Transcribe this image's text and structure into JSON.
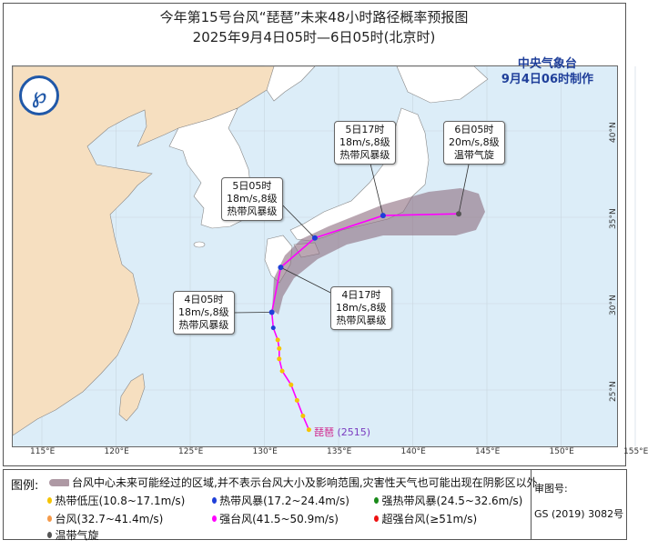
{
  "title": {
    "line1": "今年第15号台风“琵琶”未来48小时路径概率预报图",
    "line2": "2025年9月4日05时—6日05时(北京时)"
  },
  "agency": {
    "name": "中央气象台",
    "issued": "9月4日06时制作"
  },
  "map": {
    "lon_ticks": [
      "115°E",
      "120°E",
      "125°E",
      "130°E",
      "135°E",
      "140°E",
      "145°E",
      "150°E",
      "155°E"
    ],
    "lat_ticks": [
      "40°N",
      "35°N",
      "30°N",
      "25°N"
    ],
    "colors": {
      "sea": "#dcedf8",
      "china": "#f6dfc0",
      "other_land": "#ffffff",
      "cone": "#8c6d7e",
      "track": "#ff00ff"
    }
  },
  "typhoon": {
    "name": "琵琶",
    "code": "(2515)"
  },
  "past_track": [
    {
      "lon": 133.0,
      "lat": 22.7,
      "class": "tropical-depression"
    },
    {
      "lon": 132.6,
      "lat": 23.5,
      "class": "tropical-depression"
    },
    {
      "lon": 132.2,
      "lat": 24.4,
      "class": "tropical-depression"
    },
    {
      "lon": 131.8,
      "lat": 25.3,
      "class": "tropical-depression"
    },
    {
      "lon": 131.2,
      "lat": 26.1,
      "class": "tropical-depression"
    },
    {
      "lon": 131.0,
      "lat": 26.8,
      "class": "tropical-depression"
    },
    {
      "lon": 131.0,
      "lat": 27.4,
      "class": "tropical-depression"
    },
    {
      "lon": 130.9,
      "lat": 27.9,
      "class": "tropical-depression"
    },
    {
      "lon": 130.6,
      "lat": 28.6,
      "class": "tropical-storm"
    }
  ],
  "forecast_points": [
    {
      "lon": 130.5,
      "lat": 29.5,
      "time": "4日05时",
      "wind": "18m/s,8级",
      "level": "热带风暴级",
      "class": "tropical-storm"
    },
    {
      "lon": 131.1,
      "lat": 32.1,
      "time": "4日17时",
      "wind": "18m/s,8级",
      "level": "热带风暴级",
      "class": "tropical-storm"
    },
    {
      "lon": 133.4,
      "lat": 33.8,
      "time": "5日05时",
      "wind": "18m/s,8级",
      "level": "热带风暴级",
      "class": "tropical-storm"
    },
    {
      "lon": 138.0,
      "lat": 35.1,
      "time": "5日17时",
      "wind": "18m/s,8级",
      "level": "热带风暴级",
      "class": "tropical-storm"
    },
    {
      "lon": 143.1,
      "lat": 35.2,
      "time": "6日05时",
      "wind": "20m/s,8级",
      "level": "温带气旋",
      "class": "extratropical"
    }
  ],
  "legend": {
    "title": "图例:",
    "cone": "台风中心未来可能经过的区域,并不表示台风大小及影响范围,灾害性天气也可能出现在阴影区以外",
    "items": [
      {
        "label": "热带低压(10.8~17.1m/s)",
        "color": "#f5c400"
      },
      {
        "label": "热带风暴(17.2~24.4m/s)",
        "color": "#1f3fd8"
      },
      {
        "label": "强热带风暴(24.5~32.6m/s)",
        "color": "#1a8a1a"
      },
      {
        "label": "台风(32.7~41.4m/s)",
        "color": "#f59a4a"
      },
      {
        "label": "强台风(41.5~50.9m/s)",
        "color": "#ff00ff"
      },
      {
        "label": "超强台风(≥51m/s)",
        "color": "#ee1111"
      },
      {
        "label": "温带气旋",
        "color": "#555555"
      }
    ],
    "approval_label": "审图号:",
    "approval_no": "GS (2019) 3082号"
  }
}
